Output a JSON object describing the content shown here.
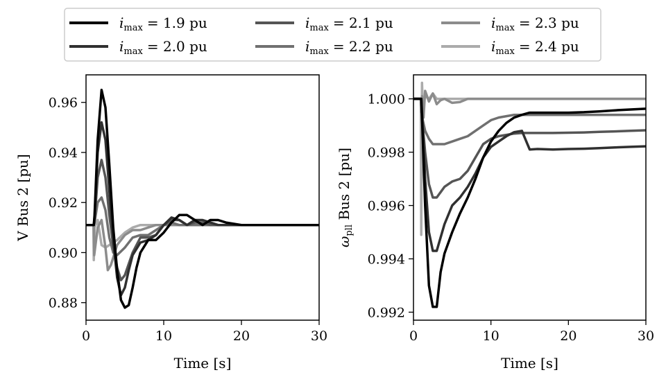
{
  "legend": {
    "title_prefix": "i",
    "items": [
      {
        "sub": "max",
        "label": "= 1.9 pu",
        "color": "#000000"
      },
      {
        "sub": "max",
        "label": "= 2.0 pu",
        "color": "#303030"
      },
      {
        "sub": "max",
        "label": "= 2.1 pu",
        "color": "#555555"
      },
      {
        "sub": "max",
        "label": "= 2.2 pu",
        "color": "#707070"
      },
      {
        "sub": "max",
        "label": "= 2.3 pu",
        "color": "#8c8c8c"
      },
      {
        "sub": "max",
        "label": "= 2.4 pu",
        "color": "#ababab"
      }
    ]
  },
  "chart_data": [
    {
      "type": "line",
      "xlabel": "Time [s]",
      "ylabel": "V Bus 2 [pu]",
      "xlim": [
        0,
        30
      ],
      "ylim": [
        0.873,
        0.971
      ],
      "xticks": [
        0,
        10,
        20,
        30
      ],
      "yticks": [
        0.88,
        0.9,
        0.92,
        0.94,
        0.96
      ],
      "ytick_labels": [
        "0.88",
        "0.90",
        "0.92",
        "0.94",
        "0.96"
      ],
      "series": [
        {
          "name": "1.9 pu",
          "x": [
            0,
            1,
            1.1,
            1.5,
            2,
            2.5,
            3,
            3.5,
            4,
            4.5,
            5,
            5.5,
            6,
            6.5,
            7,
            8,
            9,
            10,
            11,
            12,
            13,
            14,
            15,
            16,
            17,
            18,
            20,
            22,
            24,
            26,
            28,
            30
          ],
          "y": [
            0.911,
            0.911,
            0.915,
            0.945,
            0.965,
            0.958,
            0.935,
            0.91,
            0.893,
            0.881,
            0.878,
            0.879,
            0.886,
            0.894,
            0.9,
            0.905,
            0.905,
            0.908,
            0.912,
            0.915,
            0.915,
            0.913,
            0.911,
            0.913,
            0.913,
            0.912,
            0.911,
            0.911,
            0.911,
            0.911,
            0.911,
            0.911
          ]
        },
        {
          "name": "2.0 pu",
          "x": [
            0,
            1,
            1.1,
            1.5,
            2,
            2.5,
            3,
            3.5,
            4,
            4.5,
            5,
            5.5,
            6,
            7,
            8,
            9,
            10,
            11,
            12,
            13,
            14,
            15,
            16,
            17,
            18,
            20,
            22,
            24,
            26,
            28,
            30
          ],
          "y": [
            0.911,
            0.911,
            0.914,
            0.94,
            0.952,
            0.945,
            0.925,
            0.905,
            0.89,
            0.883,
            0.886,
            0.893,
            0.899,
            0.904,
            0.905,
            0.907,
            0.911,
            0.914,
            0.913,
            0.911,
            0.913,
            0.913,
            0.912,
            0.911,
            0.911,
            0.911,
            0.911,
            0.911,
            0.911,
            0.911,
            0.911
          ]
        },
        {
          "name": "2.1 pu",
          "x": [
            0,
            1,
            1.1,
            1.5,
            2,
            2.5,
            3,
            3.5,
            4,
            4.5,
            5,
            6,
            7,
            8,
            9,
            10,
            11,
            12,
            13,
            14,
            15,
            16,
            18,
            20,
            22,
            24,
            26,
            28,
            30
          ],
          "y": [
            0.911,
            0.911,
            0.913,
            0.93,
            0.937,
            0.93,
            0.915,
            0.903,
            0.894,
            0.889,
            0.891,
            0.9,
            0.906,
            0.906,
            0.907,
            0.911,
            0.913,
            0.913,
            0.911,
            0.912,
            0.912,
            0.911,
            0.911,
            0.911,
            0.911,
            0.911,
            0.911,
            0.911,
            0.911
          ]
        },
        {
          "name": "2.2 pu",
          "x": [
            0,
            1,
            1.1,
            1.5,
            2,
            2.5,
            3,
            3.5,
            4,
            5,
            6,
            7,
            8,
            9,
            10,
            11,
            12,
            13,
            14,
            16,
            18,
            20,
            22,
            24,
            26,
            28,
            30
          ],
          "y": [
            0.911,
            0.911,
            0.912,
            0.92,
            0.922,
            0.917,
            0.906,
            0.9,
            0.899,
            0.902,
            0.906,
            0.907,
            0.907,
            0.909,
            0.911,
            0.912,
            0.911,
            0.911,
            0.911,
            0.911,
            0.911,
            0.911,
            0.911,
            0.911,
            0.911,
            0.911,
            0.911
          ]
        },
        {
          "name": "2.3 pu",
          "x": [
            0,
            1,
            1.05,
            1.5,
            2,
            2.5,
            2.8,
            3.2,
            4,
            5,
            6,
            7,
            8,
            9,
            10,
            12,
            14,
            16,
            18,
            20,
            22,
            24,
            26,
            28,
            30
          ],
          "y": [
            0.911,
            0.911,
            0.899,
            0.91,
            0.913,
            0.902,
            0.893,
            0.895,
            0.903,
            0.907,
            0.909,
            0.909,
            0.91,
            0.911,
            0.911,
            0.911,
            0.911,
            0.911,
            0.911,
            0.911,
            0.911,
            0.911,
            0.911,
            0.911,
            0.911
          ]
        },
        {
          "name": "2.4 pu",
          "x": [
            0,
            0.95,
            1.0,
            1.1,
            1.5,
            2,
            2.5,
            3,
            4,
            5,
            6,
            7,
            8,
            10,
            12,
            14,
            16,
            18,
            20,
            22,
            24,
            26,
            28,
            30
          ],
          "y": [
            0.911,
            0.911,
            0.897,
            0.91,
            0.913,
            0.903,
            0.902,
            0.903,
            0.905,
            0.908,
            0.91,
            0.911,
            0.911,
            0.911,
            0.911,
            0.911,
            0.911,
            0.911,
            0.911,
            0.911,
            0.911,
            0.911,
            0.911,
            0.911
          ]
        }
      ]
    },
    {
      "type": "line",
      "xlabel": "Time [s]",
      "ylabel_main": "ω",
      "ylabel_sub": "pll",
      "ylabel_rest": " Bus 2 [pu]",
      "xlim": [
        0,
        30
      ],
      "ylim": [
        0.9917,
        1.0009
      ],
      "xticks": [
        0,
        10,
        20,
        30
      ],
      "yticks": [
        0.992,
        0.994,
        0.996,
        0.998,
        1.0
      ],
      "ytick_labels": [
        "0.992",
        "0.994",
        "0.996",
        "0.998",
        "1.000"
      ],
      "series": [
        {
          "name": "1.9 pu",
          "x": [
            0,
            1,
            1.2,
            1.5,
            2,
            2.5,
            3,
            3.5,
            4,
            5,
            6,
            7,
            8,
            9,
            10,
            11,
            12,
            13,
            14,
            15,
            16,
            18,
            20,
            22,
            24,
            26,
            28,
            30
          ],
          "y": [
            1.0,
            1.0,
            0.9985,
            0.996,
            0.993,
            0.9922,
            0.9922,
            0.9935,
            0.9942,
            0.995,
            0.9957,
            0.9963,
            0.997,
            0.9978,
            0.9984,
            0.9988,
            0.9991,
            0.9993,
            0.9994,
            0.99948,
            0.99948,
            0.99948,
            0.99948,
            0.9995,
            0.99953,
            0.99957,
            0.9996,
            0.99963
          ]
        },
        {
          "name": "2.0 pu",
          "x": [
            0,
            1,
            1.2,
            1.5,
            2,
            2.5,
            3,
            3.5,
            4,
            5,
            6,
            7,
            8,
            9,
            10,
            11,
            12,
            13,
            14,
            15,
            16,
            18,
            20,
            22,
            24,
            26,
            28,
            30
          ],
          "y": [
            1.0,
            1.0,
            0.9988,
            0.997,
            0.995,
            0.9943,
            0.9943,
            0.9948,
            0.9953,
            0.996,
            0.9963,
            0.9967,
            0.9972,
            0.9978,
            0.9982,
            0.9984,
            0.9986,
            0.99875,
            0.9988,
            0.9981,
            0.99812,
            0.9981,
            0.99812,
            0.99813,
            0.99815,
            0.99818,
            0.9982,
            0.99822
          ]
        },
        {
          "name": "2.1 pu",
          "x": [
            0,
            1,
            1.2,
            1.5,
            2,
            2.5,
            3,
            3.5,
            4,
            5,
            6,
            7,
            8,
            9,
            10,
            11,
            12,
            13,
            14,
            15,
            16,
            18,
            20,
            22,
            24,
            26,
            28,
            30
          ],
          "y": [
            1.0,
            1.0,
            0.999,
            0.998,
            0.9968,
            0.9963,
            0.9963,
            0.9965,
            0.9967,
            0.9969,
            0.997,
            0.9973,
            0.9978,
            0.9983,
            0.9985,
            0.9986,
            0.99865,
            0.9987,
            0.99872,
            0.99872,
            0.99872,
            0.99872,
            0.99873,
            0.99874,
            0.99876,
            0.99878,
            0.9988,
            0.99882
          ]
        },
        {
          "name": "2.2 pu",
          "x": [
            0,
            1,
            1.2,
            1.5,
            2,
            2.5,
            3,
            3.5,
            4,
            5,
            6,
            7,
            8,
            9,
            10,
            11,
            12,
            13,
            14,
            16,
            18,
            20,
            22,
            24,
            26,
            28,
            30
          ],
          "y": [
            1.0,
            1.0,
            0.9992,
            0.9988,
            0.9985,
            0.9983,
            0.9983,
            0.9983,
            0.9983,
            0.9984,
            0.9985,
            0.9986,
            0.9988,
            0.999,
            0.9992,
            0.9993,
            0.99935,
            0.9994,
            0.9994,
            0.9994,
            0.9994,
            0.9994,
            0.9994,
            0.9994,
            0.9994,
            0.9994,
            0.9994
          ]
        },
        {
          "name": "2.3 pu",
          "x": [
            0,
            0.95,
            1.0,
            1.1,
            1.3,
            1.5,
            2,
            2.5,
            3,
            3.5,
            4,
            5,
            6,
            7,
            8,
            10,
            15,
            20,
            25,
            30
          ],
          "y": [
            1.0,
            1.0,
            0.9995,
            1.0001,
            0.9993,
            1.0003,
            0.9999,
            1.0002,
            0.9998,
            0.99995,
            1.0,
            0.99985,
            0.99988,
            1.0,
            1.0,
            1.0,
            1.0,
            1.0,
            1.0,
            1.0
          ]
        },
        {
          "name": "2.4 pu",
          "x": [
            0,
            0.95,
            1.0,
            1.1,
            1.2,
            1.5,
            2,
            2.5,
            3,
            4,
            5,
            10,
            15,
            20,
            25,
            30
          ],
          "y": [
            1.0,
            1.0,
            0.9949,
            1.0006,
            0.9997,
            1.0001,
            1.0,
            1.0002,
            1.0,
            1.0,
            1.0,
            1.0,
            1.0,
            1.0,
            1.0,
            1.0
          ]
        }
      ]
    }
  ]
}
